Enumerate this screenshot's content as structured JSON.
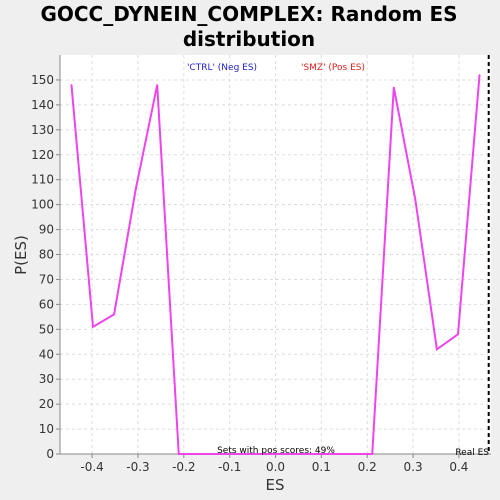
{
  "chart_data": {
    "type": "line",
    "title_line1": "GOCC_DYNEIN_COMPLEX: Random ES",
    "title_line2": "distribution",
    "xlabel": "ES",
    "ylabel": "P(ES)",
    "xlim": [
      -0.47,
      0.47
    ],
    "ylim": [
      0,
      160
    ],
    "x_ticks": [
      -0.4,
      -0.3,
      -0.2,
      -0.1,
      0.0,
      0.1,
      0.2,
      0.3,
      0.4
    ],
    "x_tick_labels": [
      "-0.4",
      "-0.3",
      "-0.2",
      "-0.1",
      "0.0",
      "0.1",
      "0.2",
      "0.3",
      "0.4"
    ],
    "y_ticks": [
      0,
      10,
      20,
      30,
      40,
      50,
      60,
      70,
      80,
      90,
      100,
      110,
      120,
      130,
      140,
      150
    ],
    "y_tick_labels": [
      "0",
      "10",
      "20",
      "30",
      "40",
      "50",
      "60",
      "70",
      "80",
      "90",
      "100",
      "110",
      "120",
      "130",
      "140",
      "150"
    ],
    "grid": true,
    "series": [
      {
        "color": "#ee44ee",
        "x": [
          -0.445,
          -0.398,
          -0.352,
          -0.305,
          -0.258,
          -0.211,
          0.211,
          0.258,
          0.305,
          0.352,
          0.398,
          0.445
        ],
        "y": [
          148,
          51,
          56,
          106,
          148,
          0,
          0,
          147,
          102,
          42,
          48,
          152
        ]
      }
    ],
    "legend": {
      "neg": {
        "label": "'CTRL' (Neg ES)",
        "color": "#2222cc"
      },
      "pos": {
        "label": "'SMZ' (Pos ES)",
        "color": "#dd2222"
      }
    },
    "annotation": "Sets with pos scores: 49%",
    "real_es": {
      "value": 0.465,
      "label": "Real ES"
    }
  }
}
